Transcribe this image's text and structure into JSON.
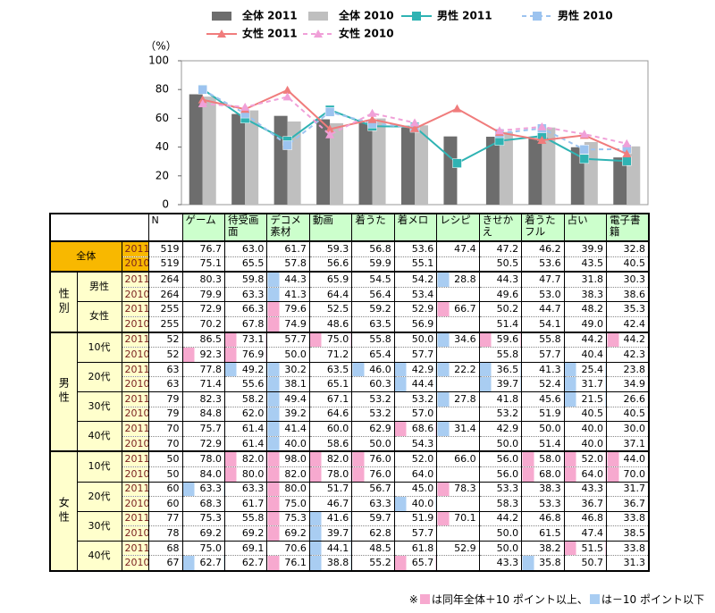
{
  "chart_data": {
    "type": "bar",
    "y_label": "（%）",
    "categories": [
      "ゲーム",
      "待受画面",
      "デコメ素材",
      "動画",
      "着うた",
      "着メロ",
      "レシピ",
      "きせかえ",
      "着うたフル",
      "占い",
      "電子書籍"
    ],
    "ylim": [
      0,
      100
    ],
    "yticks": [
      0,
      20,
      40,
      60,
      80,
      100
    ],
    "grid": false,
    "series": [
      {
        "name": "全体 2011",
        "type": "bar",
        "color": "#6d6d6d",
        "values": [
          76.7,
          63.0,
          61.7,
          59.3,
          56.8,
          53.6,
          47.4,
          47.2,
          46.2,
          39.9,
          32.8
        ]
      },
      {
        "name": "全体 2010",
        "type": "bar",
        "color": "#bfbfbf",
        "values": [
          75.1,
          65.5,
          57.8,
          56.6,
          59.9,
          55.1,
          null,
          50.5,
          53.6,
          43.5,
          40.5
        ]
      },
      {
        "name": "男性 2011",
        "type": "line",
        "marker": "square",
        "dashed": false,
        "color": "#2fb3b3",
        "values": [
          80.3,
          59.8,
          44.3,
          65.9,
          54.5,
          54.2,
          28.8,
          44.3,
          47.7,
          31.8,
          30.3
        ]
      },
      {
        "name": "男性 2010",
        "type": "line",
        "marker": "square",
        "dashed": true,
        "color": "#9cc3ef",
        "values": [
          79.9,
          63.3,
          41.3,
          64.4,
          56.4,
          53.4,
          null,
          49.6,
          53.0,
          38.3,
          38.6
        ]
      },
      {
        "name": "女性 2011",
        "type": "line",
        "marker": "triangle",
        "dashed": false,
        "color": "#f07c7c",
        "values": [
          72.9,
          66.3,
          79.6,
          52.5,
          59.2,
          52.9,
          66.7,
          50.2,
          44.7,
          48.2,
          35.3
        ]
      },
      {
        "name": "女性 2010",
        "type": "line",
        "marker": "triangle",
        "dashed": true,
        "color": "#f0a0d8",
        "values": [
          70.2,
          67.8,
          74.9,
          48.6,
          63.5,
          56.9,
          null,
          51.4,
          54.1,
          49.0,
          42.4
        ]
      }
    ]
  },
  "table": {
    "n_header": "N",
    "pink_color": "#f7a9cf",
    "blue_color": "#a9cdf2",
    "groups": [
      {
        "label": "全体",
        "subgroups": [
          {
            "rows": [
              {
                "year": "2011",
                "n": "519",
                "values": [
                  "76.7",
                  "63.0",
                  "61.7",
                  "59.3",
                  "56.8",
                  "53.6",
                  "47.4",
                  "47.2",
                  "46.2",
                  "39.9",
                  "32.8"
                ],
                "pink": [],
                "blue": []
              },
              {
                "year": "2010",
                "n": "519",
                "values": [
                  "75.1",
                  "65.5",
                  "57.8",
                  "56.6",
                  "59.9",
                  "55.1",
                  null,
                  "50.5",
                  "53.6",
                  "43.5",
                  "40.5"
                ],
                "pink": [],
                "blue": []
              }
            ]
          }
        ]
      },
      {
        "label": "性別",
        "subgroups": [
          {
            "label": "男性",
            "rows": [
              {
                "year": "2011",
                "n": "264",
                "values": [
                  "80.3",
                  "59.8",
                  "44.3",
                  "65.9",
                  "54.5",
                  "54.2",
                  "28.8",
                  "44.3",
                  "47.7",
                  "31.8",
                  "30.3"
                ],
                "pink": [],
                "blue": [
                  2,
                  6
                ]
              },
              {
                "year": "2010",
                "n": "264",
                "values": [
                  "79.9",
                  "63.3",
                  "41.3",
                  "64.4",
                  "56.4",
                  "53.4",
                  null,
                  "49.6",
                  "53.0",
                  "38.3",
                  "38.6"
                ],
                "pink": [],
                "blue": [
                  2
                ]
              }
            ]
          },
          {
            "label": "女性",
            "rows": [
              {
                "year": "2011",
                "n": "255",
                "values": [
                  "72.9",
                  "66.3",
                  "79.6",
                  "52.5",
                  "59.2",
                  "52.9",
                  "66.7",
                  "50.2",
                  "44.7",
                  "48.2",
                  "35.3"
                ],
                "pink": [
                  2,
                  6
                ],
                "blue": []
              },
              {
                "year": "2010",
                "n": "255",
                "values": [
                  "70.2",
                  "67.8",
                  "74.9",
                  "48.6",
                  "63.5",
                  "56.9",
                  null,
                  "51.4",
                  "54.1",
                  "49.0",
                  "42.4"
                ],
                "pink": [
                  2
                ],
                "blue": []
              }
            ]
          }
        ]
      },
      {
        "label": "男性",
        "subgroups": [
          {
            "label": "10代",
            "rows": [
              {
                "year": "2011",
                "n": "52",
                "values": [
                  "86.5",
                  "73.1",
                  "57.7",
                  "75.0",
                  "55.8",
                  "50.0",
                  "34.6",
                  "59.6",
                  "55.8",
                  "44.2",
                  "44.2"
                ],
                "pink": [
                  1,
                  3,
                  7,
                  10
                ],
                "blue": [
                  6
                ]
              },
              {
                "year": "2010",
                "n": "52",
                "values": [
                  "92.3",
                  "76.9",
                  "50.0",
                  "71.2",
                  "65.4",
                  "57.7",
                  null,
                  "55.8",
                  "57.7",
                  "40.4",
                  "42.3"
                ],
                "pink": [
                  0,
                  1
                ],
                "blue": []
              }
            ]
          },
          {
            "label": "20代",
            "rows": [
              {
                "year": "2011",
                "n": "63",
                "values": [
                  "77.8",
                  "49.2",
                  "30.2",
                  "63.5",
                  "46.0",
                  "42.9",
                  "22.2",
                  "36.5",
                  "41.3",
                  "25.4",
                  "23.8"
                ],
                "pink": [],
                "blue": [
                  1,
                  2,
                  4,
                  5,
                  6,
                  7,
                  9
                ]
              },
              {
                "year": "2010",
                "n": "63",
                "values": [
                  "71.4",
                  "55.6",
                  "38.1",
                  "65.1",
                  "60.3",
                  "44.4",
                  null,
                  "39.7",
                  "52.4",
                  "31.7",
                  "34.9"
                ],
                "pink": [],
                "blue": [
                  2,
                  5,
                  7,
                  9
                ]
              }
            ]
          },
          {
            "label": "30代",
            "rows": [
              {
                "year": "2011",
                "n": "79",
                "values": [
                  "82.3",
                  "58.2",
                  "49.4",
                  "67.1",
                  "53.2",
                  "53.2",
                  "27.8",
                  "41.8",
                  "45.6",
                  "21.5",
                  "26.6"
                ],
                "pink": [],
                "blue": [
                  2,
                  6,
                  9
                ]
              },
              {
                "year": "2010",
                "n": "79",
                "values": [
                  "84.8",
                  "62.0",
                  "39.2",
                  "64.6",
                  "53.2",
                  "57.0",
                  null,
                  "53.2",
                  "51.9",
                  "40.5",
                  "40.5"
                ],
                "pink": [],
                "blue": [
                  2
                ]
              }
            ]
          },
          {
            "label": "40代",
            "rows": [
              {
                "year": "2011",
                "n": "70",
                "values": [
                  "75.7",
                  "61.4",
                  "41.4",
                  "60.0",
                  "62.9",
                  "68.6",
                  "31.4",
                  "42.9",
                  "50.0",
                  "40.0",
                  "30.0"
                ],
                "pink": [
                  5
                ],
                "blue": [
                  2,
                  6
                ]
              },
              {
                "year": "2010",
                "n": "70",
                "values": [
                  "72.9",
                  "61.4",
                  "40.0",
                  "58.6",
                  "50.0",
                  "54.3",
                  null,
                  "50.0",
                  "51.4",
                  "40.0",
                  "37.1"
                ],
                "pink": [],
                "blue": [
                  2
                ]
              }
            ]
          }
        ]
      },
      {
        "label": "女性",
        "subgroups": [
          {
            "label": "10代",
            "rows": [
              {
                "year": "2011",
                "n": "50",
                "values": [
                  "78.0",
                  "82.0",
                  "98.0",
                  "82.0",
                  "76.0",
                  "52.0",
                  "66.0",
                  "56.0",
                  "58.0",
                  "52.0",
                  "44.0"
                ],
                "pink": [
                  1,
                  2,
                  3,
                  4,
                  8,
                  9,
                  10
                ],
                "blue": []
              },
              {
                "year": "2010",
                "n": "50",
                "values": [
                  "84.0",
                  "80.0",
                  "82.0",
                  "78.0",
                  "76.0",
                  "64.0",
                  null,
                  "56.0",
                  "68.0",
                  "64.0",
                  "70.0"
                ],
                "pink": [
                  1,
                  2,
                  3,
                  4,
                  8,
                  9,
                  10
                ],
                "blue": []
              }
            ]
          },
          {
            "label": "20代",
            "rows": [
              {
                "year": "2011",
                "n": "60",
                "values": [
                  "63.3",
                  "63.3",
                  "80.0",
                  "51.7",
                  "56.7",
                  "45.0",
                  "78.3",
                  "53.3",
                  "38.3",
                  "43.3",
                  "31.7"
                ],
                "pink": [
                  2,
                  6
                ],
                "blue": [
                  0
                ]
              },
              {
                "year": "2010",
                "n": "60",
                "values": [
                  "68.3",
                  "61.7",
                  "75.0",
                  "46.7",
                  "63.3",
                  "40.0",
                  null,
                  "58.3",
                  "53.3",
                  "36.7",
                  "36.7"
                ],
                "pink": [
                  2
                ],
                "blue": [
                  5
                ]
              }
            ]
          },
          {
            "label": "30代",
            "rows": [
              {
                "year": "2011",
                "n": "77",
                "values": [
                  "75.3",
                  "55.8",
                  "75.3",
                  "41.6",
                  "59.7",
                  "51.9",
                  "70.1",
                  "44.2",
                  "46.8",
                  "46.8",
                  "33.8"
                ],
                "pink": [
                  2,
                  6
                ],
                "blue": [
                  3
                ]
              },
              {
                "year": "2010",
                "n": "78",
                "values": [
                  "69.2",
                  "69.2",
                  "69.2",
                  "39.7",
                  "62.8",
                  "57.7",
                  null,
                  "50.0",
                  "61.5",
                  "47.4",
                  "38.5"
                ],
                "pink": [
                  2
                ],
                "blue": [
                  3
                ]
              }
            ]
          },
          {
            "label": "40代",
            "rows": [
              {
                "year": "2011",
                "n": "68",
                "values": [
                  "75.0",
                  "69.1",
                  "70.6",
                  "44.1",
                  "48.5",
                  "61.8",
                  "52.9",
                  "50.0",
                  "38.2",
                  "51.5",
                  "33.8"
                ],
                "pink": [
                  9
                ],
                "blue": [
                  3
                ]
              },
              {
                "year": "2010",
                "n": "67",
                "values": [
                  "62.7",
                  "62.7",
                  "76.1",
                  "38.8",
                  "55.2",
                  "65.7",
                  null,
                  "43.3",
                  "35.8",
                  "50.7",
                  "31.3"
                ],
                "pink": [
                  2,
                  5
                ],
                "blue": [
                  0,
                  3,
                  8
                ]
              }
            ]
          }
        ]
      }
    ]
  },
  "footnote": {
    "mark": "※",
    "pink_text": "は同年全体＋10 ポイント以上、",
    "blue_text": "は－10 ポイント以下"
  }
}
